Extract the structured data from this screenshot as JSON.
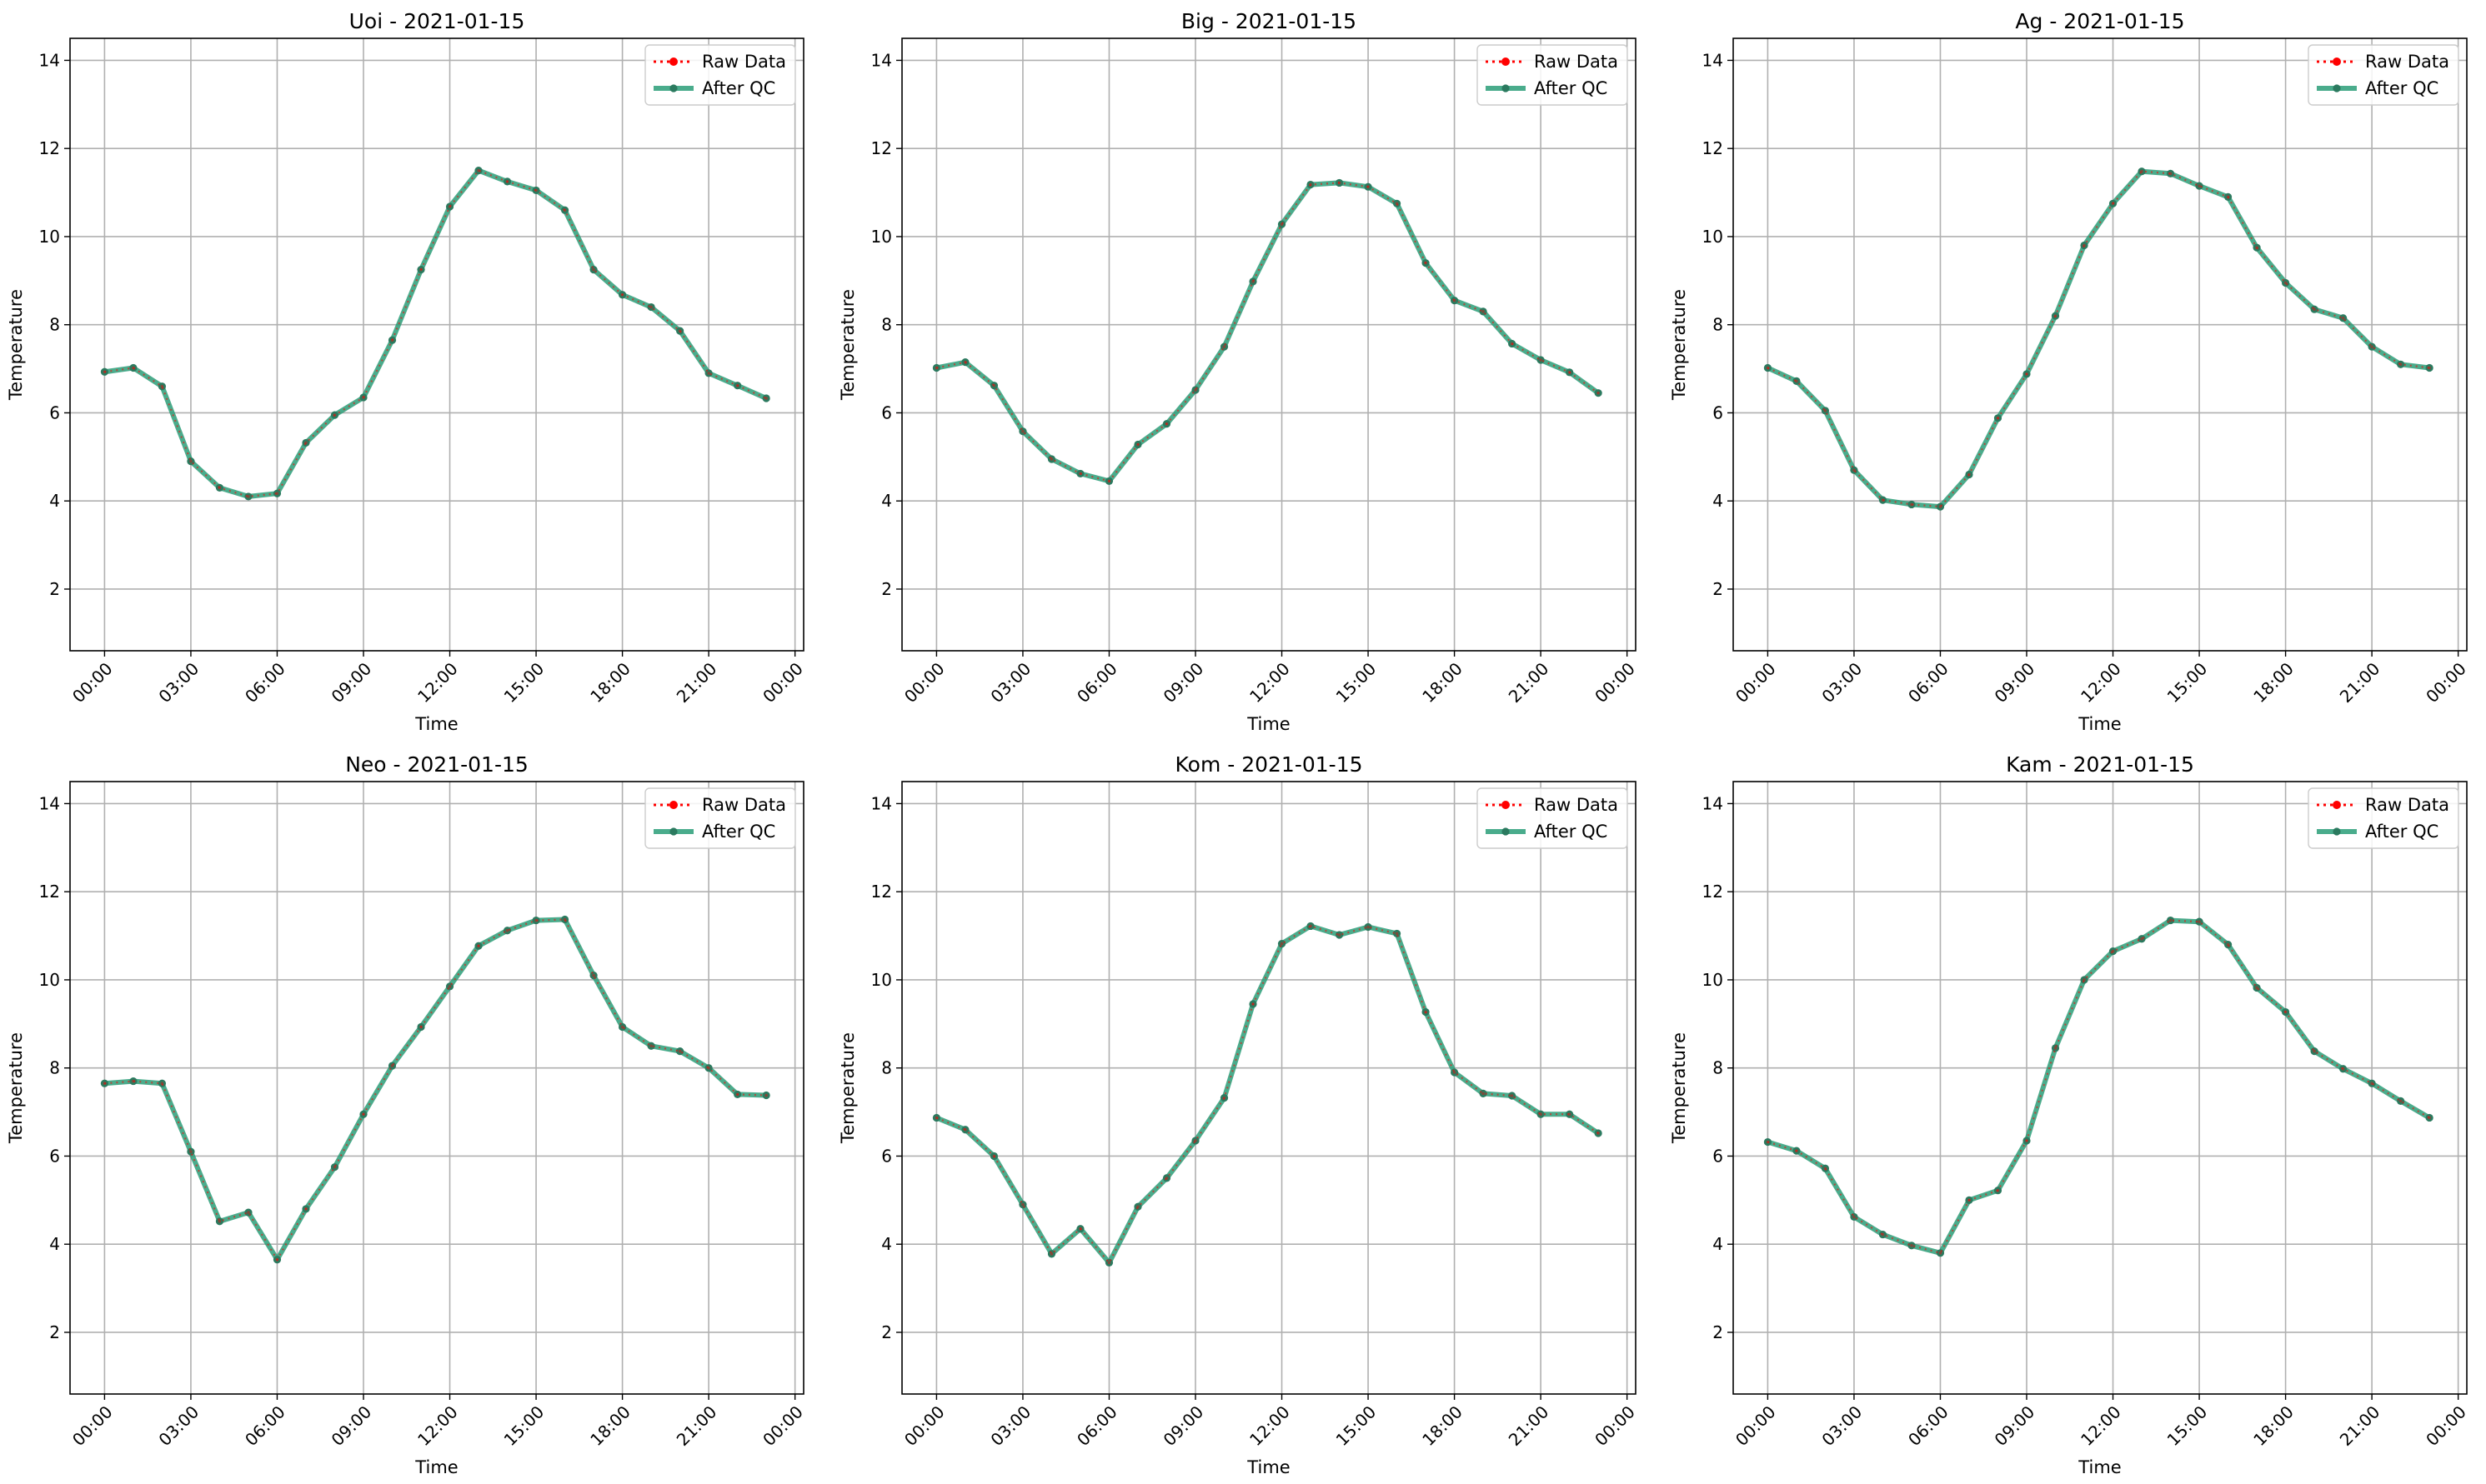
{
  "figure": {
    "colors": {
      "raw": "#ff0000",
      "qc": "#2a9d78",
      "qc_marker": "#2b7a5f",
      "grid": "#b0b0b0"
    }
  },
  "chart_data": [
    {
      "type": "line",
      "title": "Uoi - 2021-01-15",
      "xlabel": "Time",
      "ylabel": "Temperature",
      "x_ticks": [
        "00:00",
        "03:00",
        "06:00",
        "09:00",
        "12:00",
        "15:00",
        "18:00",
        "21:00",
        "00:00"
      ],
      "y_ticks": [
        "2",
        "4",
        "6",
        "8",
        "10",
        "12",
        "14"
      ],
      "x_hours": [
        0,
        1,
        2,
        3,
        4,
        5,
        6,
        7,
        8,
        9,
        10,
        11,
        12,
        13,
        14,
        15,
        16,
        17,
        18,
        19,
        20,
        21,
        22,
        23
      ],
      "xlim": [
        -1.2,
        24.3
      ],
      "ylim": [
        0.6,
        14.5
      ],
      "grid": true,
      "legend_position": "top-right",
      "series": [
        {
          "name": "Raw Data",
          "values": [
            6.93,
            7.02,
            6.6,
            4.9,
            4.3,
            4.1,
            4.17,
            5.32,
            5.95,
            6.35,
            7.65,
            9.25,
            10.68,
            11.5,
            11.25,
            11.05,
            10.6,
            9.25,
            8.68,
            8.4,
            7.86,
            6.9,
            6.62,
            6.33
          ]
        },
        {
          "name": "After QC",
          "values": [
            6.93,
            7.02,
            6.6,
            4.9,
            4.3,
            4.1,
            4.17,
            5.32,
            5.95,
            6.35,
            7.65,
            9.25,
            10.68,
            11.5,
            11.25,
            11.05,
            10.6,
            9.25,
            8.68,
            8.4,
            7.86,
            6.9,
            6.62,
            6.33
          ]
        }
      ]
    },
    {
      "type": "line",
      "title": "Big - 2021-01-15",
      "xlabel": "Time",
      "ylabel": "Temperature",
      "x_ticks": [
        "00:00",
        "03:00",
        "06:00",
        "09:00",
        "12:00",
        "15:00",
        "18:00",
        "21:00",
        "00:00"
      ],
      "y_ticks": [
        "2",
        "4",
        "6",
        "8",
        "10",
        "12",
        "14"
      ],
      "x_hours": [
        0,
        1,
        2,
        3,
        4,
        5,
        6,
        7,
        8,
        9,
        10,
        11,
        12,
        13,
        14,
        15,
        16,
        17,
        18,
        19,
        20,
        21,
        22,
        23
      ],
      "xlim": [
        -1.2,
        24.3
      ],
      "ylim": [
        0.6,
        14.5
      ],
      "grid": true,
      "legend_position": "top-right",
      "series": [
        {
          "name": "Raw Data",
          "values": [
            7.02,
            7.15,
            6.62,
            5.58,
            4.95,
            4.62,
            4.45,
            5.28,
            5.75,
            6.52,
            7.5,
            8.98,
            10.28,
            11.18,
            11.22,
            11.13,
            10.75,
            9.4,
            8.55,
            8.3,
            7.57,
            7.2,
            6.92,
            6.45
          ]
        },
        {
          "name": "After QC",
          "values": [
            7.02,
            7.15,
            6.62,
            5.58,
            4.95,
            4.62,
            4.45,
            5.28,
            5.75,
            6.52,
            7.5,
            8.98,
            10.28,
            11.18,
            11.22,
            11.13,
            10.75,
            9.4,
            8.55,
            8.3,
            7.57,
            7.2,
            6.92,
            6.45
          ]
        }
      ]
    },
    {
      "type": "line",
      "title": "Ag - 2021-01-15",
      "xlabel": "Time",
      "ylabel": "Temperature",
      "x_ticks": [
        "00:00",
        "03:00",
        "06:00",
        "09:00",
        "12:00",
        "15:00",
        "18:00",
        "21:00",
        "00:00"
      ],
      "y_ticks": [
        "2",
        "4",
        "6",
        "8",
        "10",
        "12",
        "14"
      ],
      "x_hours": [
        0,
        1,
        2,
        3,
        4,
        5,
        6,
        7,
        8,
        9,
        10,
        11,
        12,
        13,
        14,
        15,
        16,
        17,
        18,
        19,
        20,
        21,
        22,
        23
      ],
      "xlim": [
        -1.2,
        24.3
      ],
      "ylim": [
        0.6,
        14.5
      ],
      "grid": true,
      "legend_position": "top-right",
      "series": [
        {
          "name": "Raw Data",
          "values": [
            7.02,
            6.72,
            6.05,
            4.7,
            4.02,
            3.92,
            3.87,
            4.6,
            5.88,
            6.88,
            8.2,
            9.8,
            10.75,
            11.48,
            11.43,
            11.15,
            10.9,
            9.75,
            8.95,
            8.35,
            8.15,
            7.5,
            7.1,
            7.02
          ]
        },
        {
          "name": "After QC",
          "values": [
            7.02,
            6.72,
            6.05,
            4.7,
            4.02,
            3.92,
            3.87,
            4.6,
            5.88,
            6.88,
            8.2,
            9.8,
            10.75,
            11.48,
            11.43,
            11.15,
            10.9,
            9.75,
            8.95,
            8.35,
            8.15,
            7.5,
            7.1,
            7.02
          ]
        }
      ]
    },
    {
      "type": "line",
      "title": "Neo - 2021-01-15",
      "xlabel": "Time",
      "ylabel": "Temperature",
      "x_ticks": [
        "00:00",
        "03:00",
        "06:00",
        "09:00",
        "12:00",
        "15:00",
        "18:00",
        "21:00",
        "00:00"
      ],
      "y_ticks": [
        "2",
        "4",
        "6",
        "8",
        "10",
        "12",
        "14"
      ],
      "x_hours": [
        0,
        1,
        2,
        3,
        4,
        5,
        6,
        7,
        8,
        9,
        10,
        11,
        12,
        13,
        14,
        15,
        16,
        17,
        18,
        19,
        20,
        21,
        22,
        23
      ],
      "xlim": [
        -1.2,
        24.3
      ],
      "ylim": [
        0.6,
        14.5
      ],
      "grid": true,
      "legend_position": "top-right",
      "series": [
        {
          "name": "Raw Data",
          "values": [
            7.65,
            7.7,
            7.65,
            6.1,
            4.52,
            4.72,
            3.65,
            4.8,
            5.75,
            6.95,
            8.05,
            8.93,
            9.85,
            10.77,
            11.12,
            11.35,
            11.37,
            10.1,
            8.93,
            8.5,
            8.38,
            8.0,
            7.4,
            7.38
          ]
        },
        {
          "name": "After QC",
          "values": [
            7.65,
            7.7,
            7.65,
            6.1,
            4.52,
            4.72,
            3.65,
            4.8,
            5.75,
            6.95,
            8.05,
            8.93,
            9.85,
            10.77,
            11.12,
            11.35,
            11.37,
            10.1,
            8.93,
            8.5,
            8.38,
            8.0,
            7.4,
            7.38
          ]
        }
      ]
    },
    {
      "type": "line",
      "title": "Kom - 2021-01-15",
      "xlabel": "Time",
      "ylabel": "Temperature",
      "x_ticks": [
        "00:00",
        "03:00",
        "06:00",
        "09:00",
        "12:00",
        "15:00",
        "18:00",
        "21:00",
        "00:00"
      ],
      "y_ticks": [
        "2",
        "4",
        "6",
        "8",
        "10",
        "12",
        "14"
      ],
      "x_hours": [
        0,
        1,
        2,
        3,
        4,
        5,
        6,
        7,
        8,
        9,
        10,
        11,
        12,
        13,
        14,
        15,
        16,
        17,
        18,
        19,
        20,
        21,
        22,
        23
      ],
      "xlim": [
        -1.2,
        24.3
      ],
      "ylim": [
        0.6,
        14.5
      ],
      "grid": true,
      "legend_position": "top-right",
      "series": [
        {
          "name": "Raw Data",
          "values": [
            6.87,
            6.6,
            6.0,
            4.9,
            3.78,
            4.35,
            3.58,
            4.85,
            5.5,
            6.35,
            7.32,
            9.45,
            10.82,
            11.22,
            11.02,
            11.2,
            11.05,
            9.27,
            7.9,
            7.42,
            7.37,
            6.95,
            6.95,
            6.52
          ]
        },
        {
          "name": "After QC",
          "values": [
            6.87,
            6.6,
            6.0,
            4.9,
            3.78,
            4.35,
            3.58,
            4.85,
            5.5,
            6.35,
            7.32,
            9.45,
            10.82,
            11.22,
            11.02,
            11.2,
            11.05,
            9.27,
            7.9,
            7.42,
            7.37,
            6.95,
            6.95,
            6.52
          ]
        }
      ]
    },
    {
      "type": "line",
      "title": "Kam - 2021-01-15",
      "xlabel": "Time",
      "ylabel": "Temperature",
      "x_ticks": [
        "00:00",
        "03:00",
        "06:00",
        "09:00",
        "12:00",
        "15:00",
        "18:00",
        "21:00",
        "00:00"
      ],
      "y_ticks": [
        "2",
        "4",
        "6",
        "8",
        "10",
        "12",
        "14"
      ],
      "x_hours": [
        0,
        1,
        2,
        3,
        4,
        5,
        6,
        7,
        8,
        9,
        10,
        11,
        12,
        13,
        14,
        15,
        16,
        17,
        18,
        19,
        20,
        21,
        22,
        23
      ],
      "xlim": [
        -1.2,
        24.3
      ],
      "ylim": [
        0.6,
        14.5
      ],
      "grid": true,
      "legend_position": "top-right",
      "series": [
        {
          "name": "Raw Data",
          "values": [
            6.32,
            6.12,
            5.72,
            4.62,
            4.22,
            3.97,
            3.8,
            5.0,
            5.22,
            6.35,
            8.45,
            10.0,
            10.65,
            10.93,
            11.35,
            11.32,
            10.8,
            9.82,
            9.27,
            8.38,
            7.98,
            7.65,
            7.25,
            6.87
          ]
        },
        {
          "name": "After QC",
          "values": [
            6.32,
            6.12,
            5.72,
            4.62,
            4.22,
            3.97,
            3.8,
            5.0,
            5.22,
            6.35,
            8.45,
            10.0,
            10.65,
            10.93,
            11.35,
            11.32,
            10.8,
            9.82,
            9.27,
            8.38,
            7.98,
            7.65,
            7.25,
            6.87
          ]
        }
      ]
    }
  ]
}
